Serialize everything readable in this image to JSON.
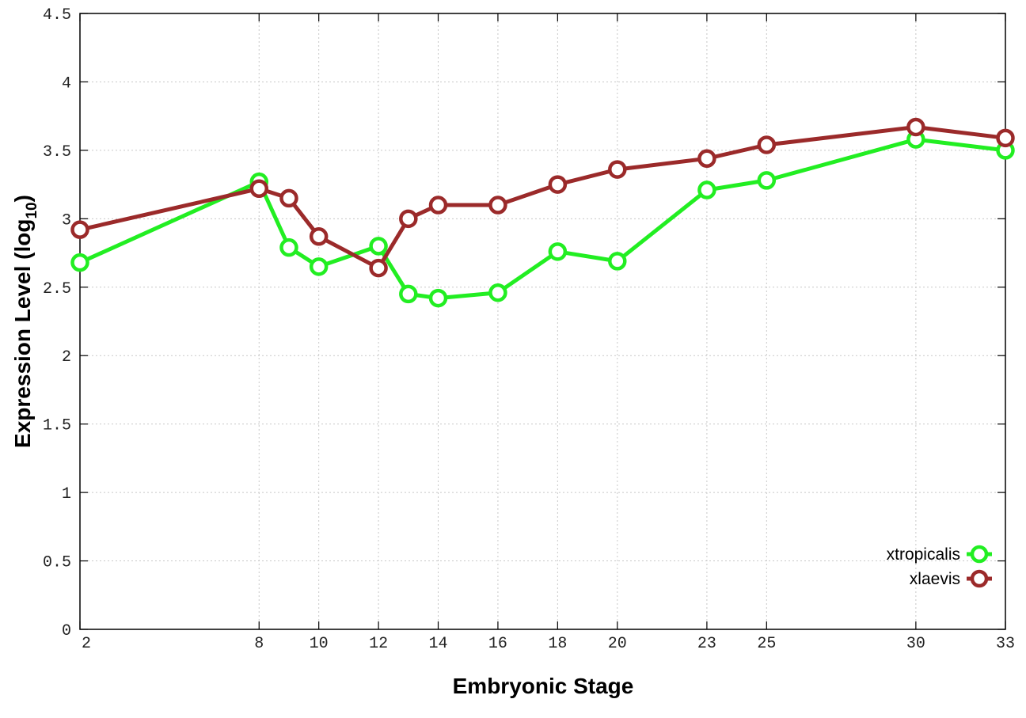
{
  "chart_data": {
    "type": "line",
    "xlabel": "Embryonic Stage",
    "ylabel_main": "Expression Level (log",
    "ylabel_sub": "10",
    "ylabel_close": ")",
    "xlim": [
      2,
      33
    ],
    "ylim": [
      0,
      4.5
    ],
    "x_ticks": [
      2,
      8,
      10,
      12,
      14,
      16,
      18,
      20,
      23,
      25,
      30,
      33
    ],
    "y_ticks": [
      0,
      0.5,
      1,
      1.5,
      2,
      2.5,
      3,
      3.5,
      4,
      4.5
    ],
    "y_tick_labels": [
      "0",
      "0.5",
      "1",
      "1.5",
      "2",
      "2.5",
      "3",
      "3.5",
      "4",
      "4.5"
    ],
    "grid": true,
    "legend_position": "bottom-right",
    "x": [
      2,
      8,
      9,
      10,
      12,
      13,
      14,
      16,
      18,
      20,
      23,
      25,
      30,
      33
    ],
    "series": [
      {
        "name": "xtropicalis",
        "color": "#22ee22",
        "values": [
          2.68,
          3.27,
          2.79,
          2.65,
          2.8,
          2.45,
          2.42,
          2.46,
          2.76,
          2.69,
          3.21,
          3.28,
          3.58,
          3.5
        ]
      },
      {
        "name": "xlaevis",
        "color": "#9b2a2a",
        "values": [
          2.92,
          3.22,
          3.15,
          2.87,
          2.64,
          3.0,
          3.1,
          3.1,
          3.25,
          3.36,
          3.44,
          3.54,
          3.67,
          3.59
        ]
      }
    ]
  }
}
